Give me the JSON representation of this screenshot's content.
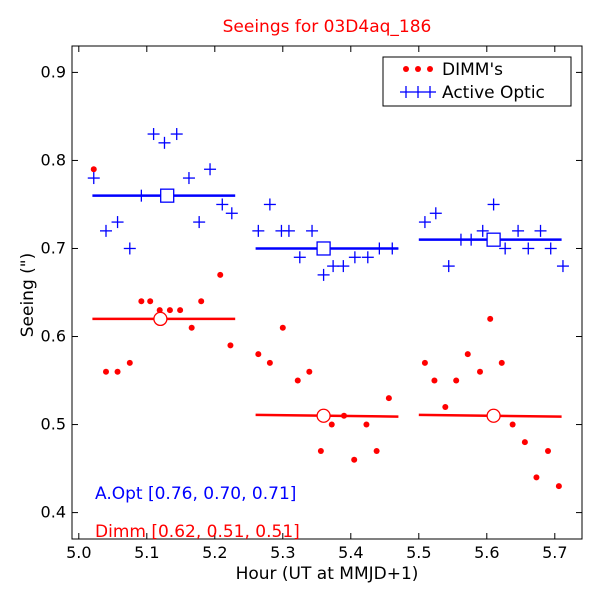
{
  "chart_data": {
    "type": "scatter",
    "title": "Seeings for 03D4aq_186",
    "xlabel": "Hour (UT at MMJD+1)",
    "ylabel": "Seeing (\")",
    "xlim": [
      4.99,
      5.74
    ],
    "ylim": [
      0.37,
      0.93
    ],
    "xticks": [
      5.0,
      5.1,
      5.2,
      5.3,
      5.4,
      5.5,
      5.6,
      5.7
    ],
    "xtick_labels": [
      "5.0",
      "5.1",
      "5.2",
      "5.3",
      "5.4",
      "5.5",
      "5.6",
      "5.7"
    ],
    "yticks": [
      0.4,
      0.5,
      0.6,
      0.7,
      0.8,
      0.9
    ],
    "ytick_labels": [
      "0.4",
      "0.5",
      "0.6",
      "0.7",
      "0.8",
      "0.9"
    ],
    "grid": false,
    "legend": {
      "position": "top-right",
      "entries": [
        {
          "label": "DIMM's",
          "marker": "dots",
          "color": "#ff0000"
        },
        {
          "label": "Active Optic",
          "marker": "plus",
          "color": "#0000ff"
        }
      ]
    },
    "series": [
      {
        "name": "DIMM's",
        "color": "#ff0000",
        "marker": "dot",
        "points": [
          [
            5.022,
            0.79
          ],
          [
            5.04,
            0.56
          ],
          [
            5.057,
            0.56
          ],
          [
            5.075,
            0.57
          ],
          [
            5.092,
            0.64
          ],
          [
            5.105,
            0.64
          ],
          [
            5.119,
            0.63
          ],
          [
            5.134,
            0.63
          ],
          [
            5.149,
            0.63
          ],
          [
            5.166,
            0.61
          ],
          [
            5.18,
            0.64
          ],
          [
            5.208,
            0.67
          ],
          [
            5.223,
            0.59
          ],
          [
            5.264,
            0.58
          ],
          [
            5.281,
            0.57
          ],
          [
            5.3,
            0.61
          ],
          [
            5.322,
            0.55
          ],
          [
            5.339,
            0.56
          ],
          [
            5.356,
            0.47
          ],
          [
            5.372,
            0.5
          ],
          [
            5.39,
            0.51
          ],
          [
            5.405,
            0.46
          ],
          [
            5.423,
            0.5
          ],
          [
            5.438,
            0.47
          ],
          [
            5.456,
            0.53
          ],
          [
            5.509,
            0.57
          ],
          [
            5.523,
            0.55
          ],
          [
            5.539,
            0.52
          ],
          [
            5.555,
            0.55
          ],
          [
            5.572,
            0.58
          ],
          [
            5.59,
            0.56
          ],
          [
            5.605,
            0.62
          ],
          [
            5.622,
            0.57
          ],
          [
            5.638,
            0.5
          ],
          [
            5.656,
            0.48
          ],
          [
            5.673,
            0.44
          ],
          [
            5.69,
            0.47
          ],
          [
            5.706,
            0.43
          ]
        ]
      },
      {
        "name": "Active Optic",
        "color": "#0000ff",
        "marker": "plus",
        "points": [
          [
            5.022,
            0.78
          ],
          [
            5.04,
            0.72
          ],
          [
            5.057,
            0.73
          ],
          [
            5.075,
            0.7
          ],
          [
            5.092,
            0.76
          ],
          [
            5.11,
            0.83
          ],
          [
            5.126,
            0.82
          ],
          [
            5.144,
            0.83
          ],
          [
            5.162,
            0.78
          ],
          [
            5.177,
            0.73
          ],
          [
            5.193,
            0.79
          ],
          [
            5.211,
            0.75
          ],
          [
            5.225,
            0.74
          ],
          [
            5.264,
            0.72
          ],
          [
            5.281,
            0.75
          ],
          [
            5.298,
            0.72
          ],
          [
            5.309,
            0.72
          ],
          [
            5.325,
            0.69
          ],
          [
            5.343,
            0.72
          ],
          [
            5.36,
            0.67
          ],
          [
            5.374,
            0.68
          ],
          [
            5.389,
            0.68
          ],
          [
            5.406,
            0.69
          ],
          [
            5.425,
            0.69
          ],
          [
            5.442,
            0.7
          ],
          [
            5.461,
            0.7
          ],
          [
            5.509,
            0.73
          ],
          [
            5.525,
            0.74
          ],
          [
            5.544,
            0.68
          ],
          [
            5.562,
            0.71
          ],
          [
            5.577,
            0.71
          ],
          [
            5.594,
            0.72
          ],
          [
            5.61,
            0.75
          ],
          [
            5.627,
            0.7
          ],
          [
            5.646,
            0.72
          ],
          [
            5.661,
            0.7
          ],
          [
            5.679,
            0.72
          ],
          [
            5.694,
            0.7
          ],
          [
            5.712,
            0.68
          ]
        ]
      }
    ],
    "segment_means": [
      {
        "series": "Active Optic",
        "color": "#0000ff",
        "x_start": 5.02,
        "x_end": 5.23,
        "value": 0.76,
        "marker_x": 5.13,
        "marker": "square"
      },
      {
        "series": "Active Optic",
        "color": "#0000ff",
        "x_start": 5.26,
        "x_end": 5.47,
        "value": 0.7,
        "marker_x": 5.36,
        "marker": "square"
      },
      {
        "series": "Active Optic",
        "color": "#0000ff",
        "x_start": 5.5,
        "x_end": 5.71,
        "value": 0.71,
        "marker_x": 5.61,
        "marker": "square"
      },
      {
        "series": "DIMM's",
        "color": "#ff0000",
        "x_start": 5.02,
        "x_end": 5.23,
        "value_start": 0.62,
        "value_end": 0.62,
        "marker_x": 5.12,
        "marker_y": 0.62,
        "marker": "circle"
      },
      {
        "series": "DIMM's",
        "color": "#ff0000",
        "x_start": 5.26,
        "x_end": 5.47,
        "value_start": 0.511,
        "value_end": 0.509,
        "marker_x": 5.36,
        "marker_y": 0.51,
        "marker": "circle"
      },
      {
        "series": "DIMM's",
        "color": "#ff0000",
        "x_start": 5.5,
        "x_end": 5.71,
        "value_start": 0.511,
        "value_end": 0.509,
        "marker_x": 5.61,
        "marker_y": 0.51,
        "marker": "circle"
      }
    ],
    "annotations": [
      {
        "text": "A.Opt [0.76, 0.70, 0.71]",
        "color": "#0000ff"
      },
      {
        "text": "Dimm [0.62, 0.51, 0.51]",
        "color": "#ff0000"
      }
    ]
  }
}
